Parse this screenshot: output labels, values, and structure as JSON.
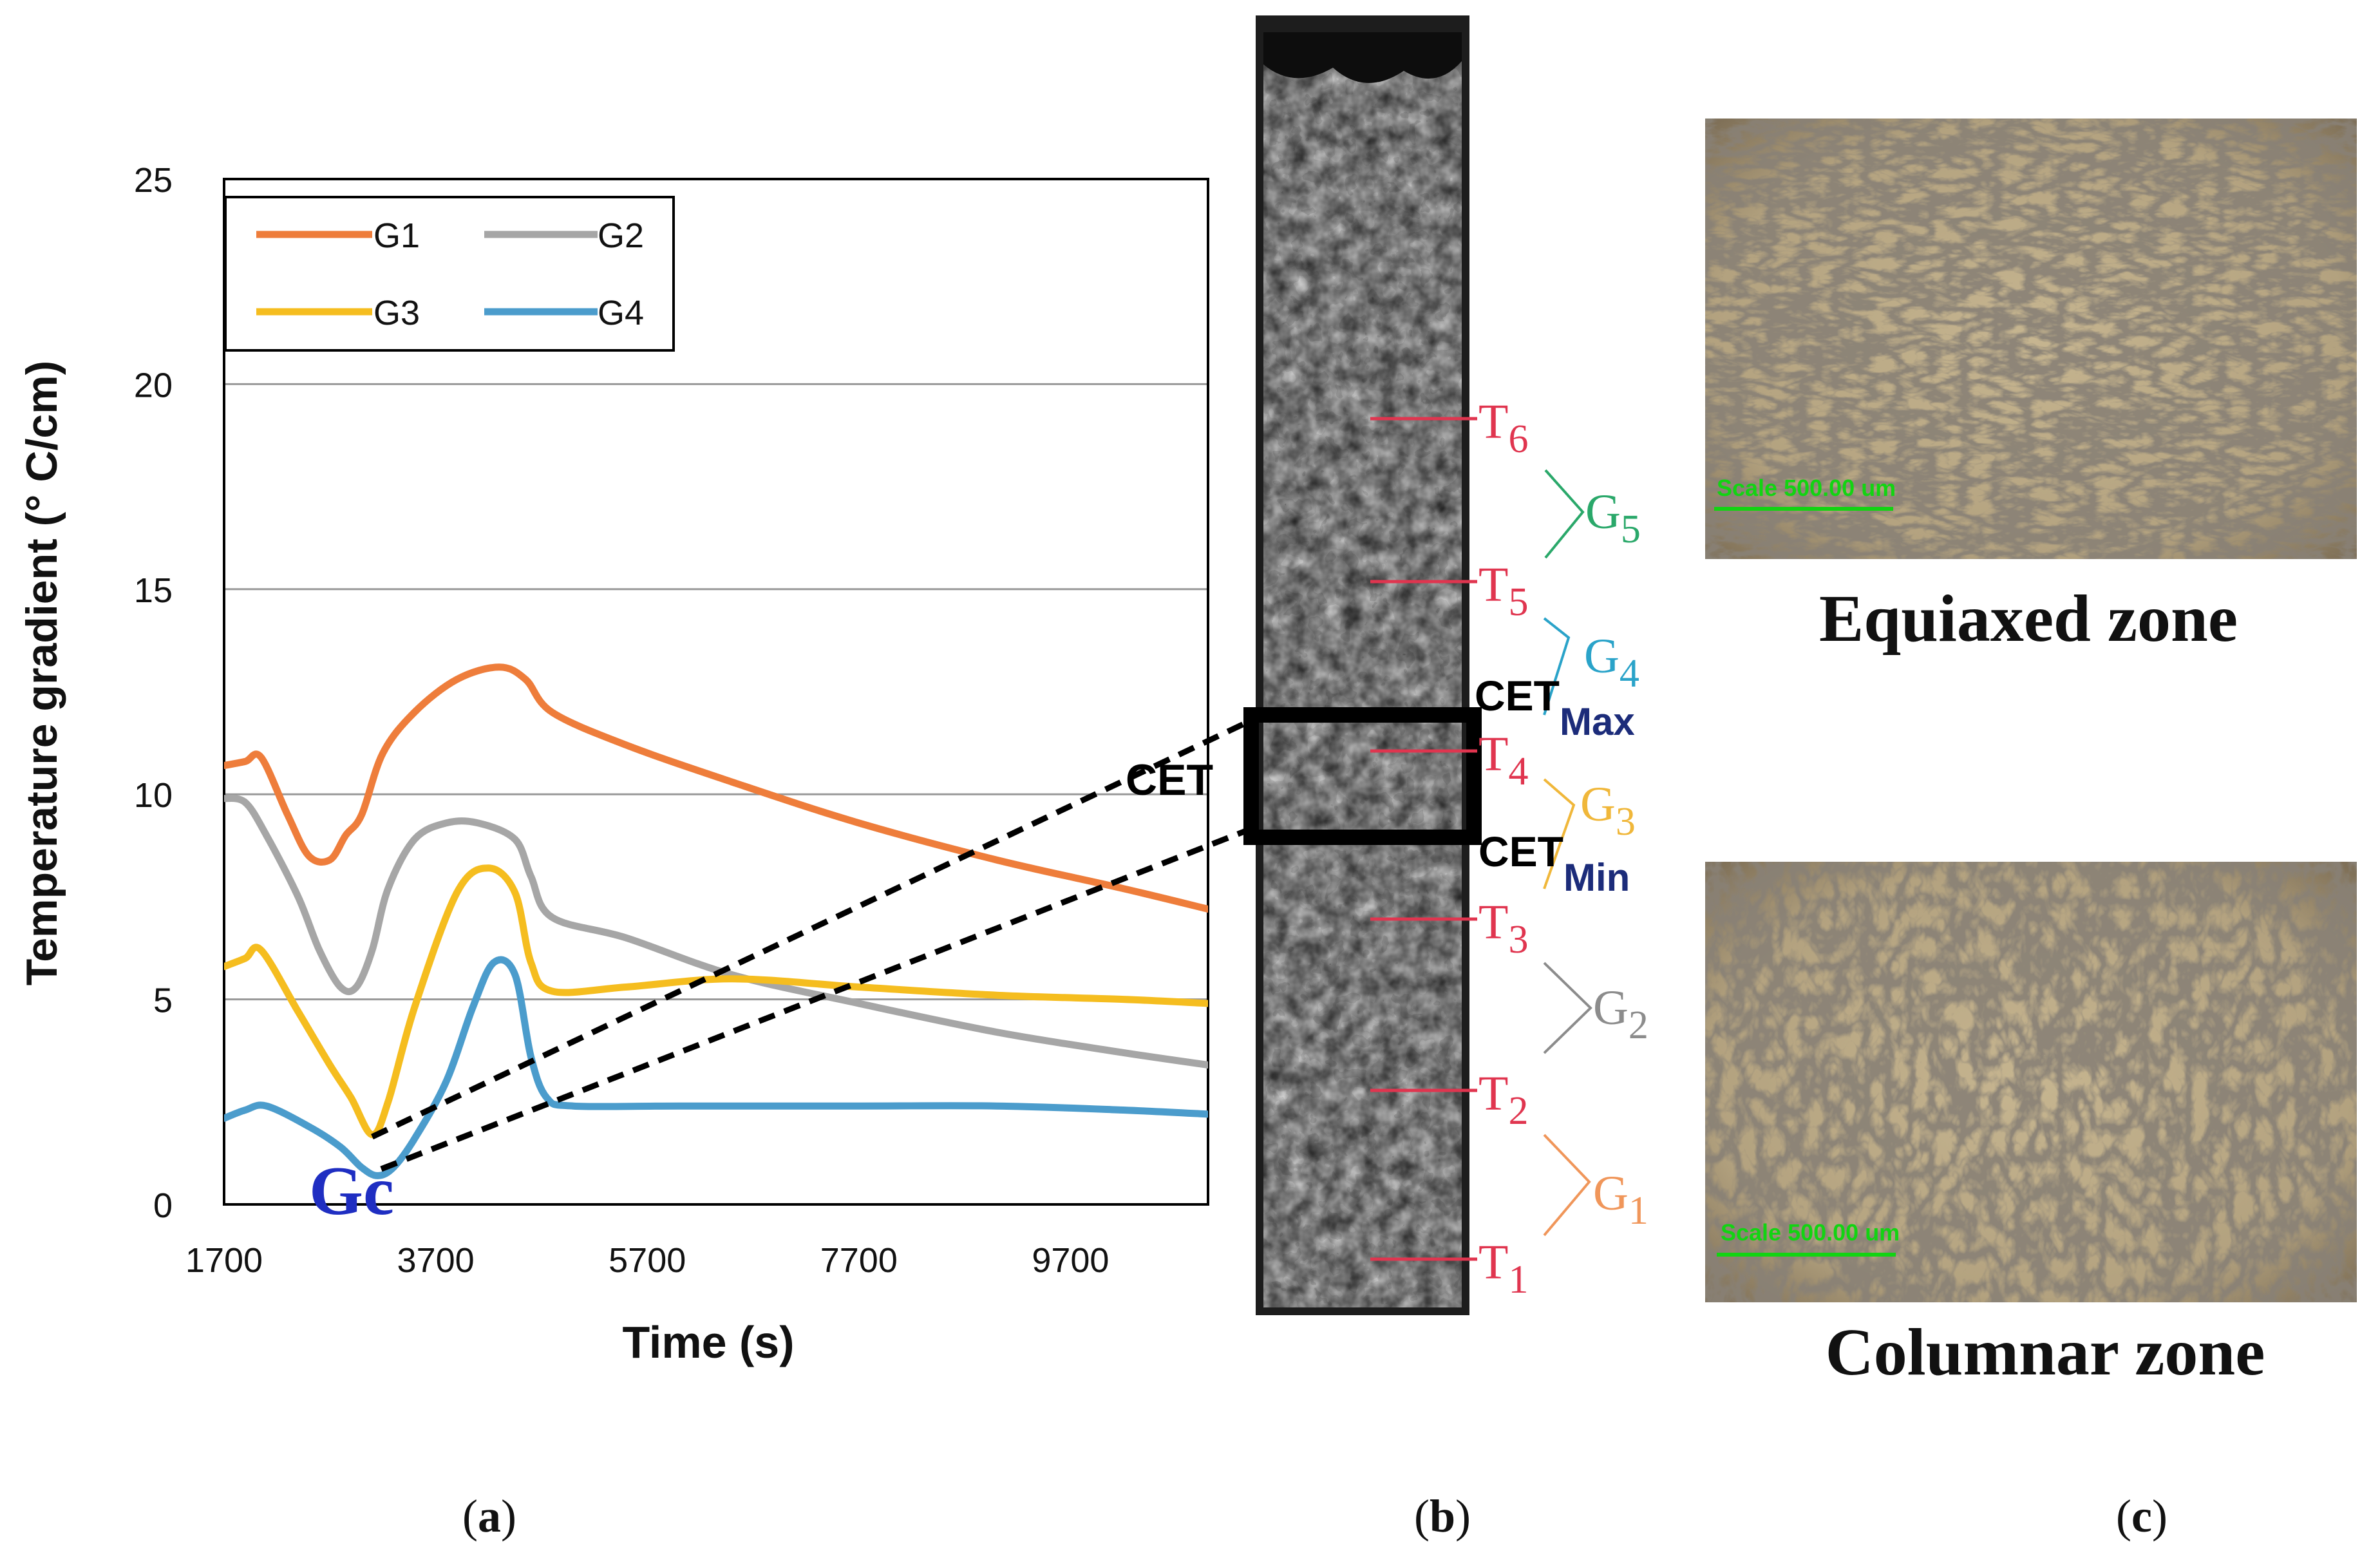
{
  "chart_data": {
    "type": "line",
    "title": "",
    "xlabel": "Time (s)",
    "ylabel": "Temperature gradient (° C/cm)",
    "xlim": [
      1700,
      11000
    ],
    "ylim": [
      0,
      25
    ],
    "xticks": [
      1700,
      3700,
      5700,
      7700,
      9700
    ],
    "yticks": [
      0,
      5,
      10,
      15,
      20,
      25
    ],
    "grid": true,
    "legend_position": "top-left",
    "series": [
      {
        "name": "G1",
        "color": "#ee7d3b",
        "x": [
          1700,
          1900,
          2050,
          2300,
          2500,
          2700,
          2850,
          3000,
          3200,
          3500,
          3900,
          4300,
          4550,
          4800,
          5500,
          6500,
          7700,
          9000,
          10200,
          11000
        ],
        "y": [
          10.7,
          10.8,
          10.9,
          9.5,
          8.5,
          8.4,
          9.0,
          9.5,
          11.0,
          12.0,
          12.8,
          13.1,
          12.8,
          12.0,
          11.2,
          10.3,
          9.3,
          8.4,
          7.7,
          7.2
        ]
      },
      {
        "name": "G2",
        "color": "#a6a6a6",
        "x": [
          1700,
          1900,
          2100,
          2400,
          2600,
          2800,
          2950,
          3100,
          3250,
          3500,
          3800,
          4100,
          4450,
          4600,
          4800,
          5500,
          6500,
          7700,
          9000,
          10200,
          11000
        ],
        "y": [
          9.9,
          9.8,
          9.0,
          7.5,
          6.2,
          5.3,
          5.3,
          6.2,
          7.7,
          8.9,
          9.3,
          9.3,
          8.9,
          8.0,
          7.0,
          6.5,
          5.6,
          4.9,
          4.2,
          3.7,
          3.4
        ]
      },
      {
        "name": "G3",
        "color": "#f5bd1f",
        "x": [
          1700,
          1900,
          2050,
          2400,
          2700,
          2900,
          3100,
          3250,
          3500,
          3900,
          4200,
          4450,
          4600,
          4800,
          5500,
          6500,
          7700,
          9000,
          10200,
          11000
        ],
        "y": [
          5.8,
          6.0,
          6.2,
          4.7,
          3.4,
          2.6,
          1.7,
          2.5,
          4.8,
          7.6,
          8.2,
          7.6,
          5.9,
          5.2,
          5.3,
          5.5,
          5.3,
          5.1,
          5.0,
          4.9
        ]
      },
      {
        "name": "G4",
        "color": "#4b9ccc",
        "x": [
          1700,
          1900,
          2100,
          2500,
          2800,
          3000,
          3150,
          3300,
          3500,
          3800,
          4050,
          4250,
          4450,
          4600,
          4750,
          5000,
          6000,
          7700,
          9000,
          10200,
          11000
        ],
        "y": [
          2.1,
          2.3,
          2.4,
          1.9,
          1.4,
          0.9,
          0.7,
          0.9,
          1.6,
          3.0,
          4.8,
          5.9,
          5.6,
          3.6,
          2.6,
          2.4,
          2.4,
          2.4,
          2.4,
          2.3,
          2.2
        ]
      }
    ]
  },
  "legend": {
    "g1": "G1",
    "g2": "G2",
    "g3": "G3",
    "g4": "G4",
    "colors": {
      "g1": "#ee7d3b",
      "g2": "#a6a6a6",
      "g3": "#f5bd1f",
      "g4": "#4b9ccc"
    }
  },
  "annotations": {
    "gc": "Gc",
    "gc_color": "#1f2ec2",
    "cet": "CET",
    "cet_max_base": "CET",
    "cet_max_sub": "Max",
    "cet_min_base": "CET",
    "cet_min_sub": "Min",
    "cet_sub_color": "#1c2c7a"
  },
  "thermocouples": {
    "color": "#e0354f",
    "labels": [
      {
        "base": "T",
        "sub": "6"
      },
      {
        "base": "T",
        "sub": "5"
      },
      {
        "base": "T",
        "sub": "4"
      },
      {
        "base": "T",
        "sub": "3"
      },
      {
        "base": "T",
        "sub": "2"
      },
      {
        "base": "T",
        "sub": "1"
      }
    ]
  },
  "gradients": {
    "labels": [
      {
        "base": "G",
        "sub": "5",
        "color": "#2aa86a"
      },
      {
        "base": "G",
        "sub": "4",
        "color": "#2aa3c9"
      },
      {
        "base": "G",
        "sub": "3",
        "color": "#f0b73a"
      },
      {
        "base": "G",
        "sub": "2",
        "color": "#8c8c8c"
      },
      {
        "base": "G",
        "sub": "1",
        "color": "#f0965a"
      }
    ]
  },
  "micrographs": {
    "equiaxed": {
      "caption": "Equiaxed zone",
      "scale": "Scale 500.00 um"
    },
    "columnar": {
      "caption": "Columnar zone",
      "scale": "Scale 500.00 um"
    }
  },
  "panel_labels": {
    "a": "(a)",
    "b": "(b)",
    "c": "(c)",
    "a_letter": "a",
    "b_letter": "b",
    "c_letter": "c"
  }
}
